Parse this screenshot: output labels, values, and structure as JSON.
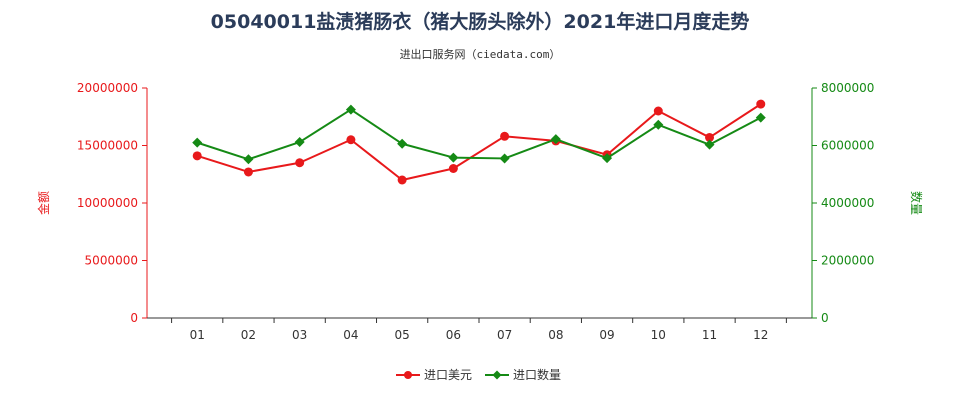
{
  "chart_data": {
    "type": "line",
    "title": "05040011盐渍猪肠衣（猪大肠头除外）2021年进口月度走势",
    "subtitle": "进出口服务网（ciedata.com）",
    "categories": [
      "01",
      "02",
      "03",
      "04",
      "05",
      "06",
      "07",
      "08",
      "09",
      "10",
      "11",
      "12"
    ],
    "y_left": {
      "label": "金额",
      "range": [
        0,
        20000000
      ],
      "ticks": [
        "0",
        "5000000",
        "10000000",
        "15000000",
        "20000000"
      ],
      "color": "#e8191b"
    },
    "y_right": {
      "label": "数量",
      "range": [
        0,
        8000000
      ],
      "ticks": [
        "0",
        "2000000",
        "4000000",
        "6000000",
        "8000000"
      ],
      "color": "#158a15"
    },
    "series": [
      {
        "name": "进口美元",
        "axis": "left",
        "color": "#e8191b",
        "marker": "circle",
        "values": [
          14100000,
          12700000,
          13500000,
          15500000,
          12000000,
          13000000,
          15800000,
          15400000,
          14200000,
          18000000,
          15700000,
          18600000
        ]
      },
      {
        "name": "进口数量",
        "axis": "right",
        "color": "#158a15",
        "marker": "diamond",
        "values": [
          6100000,
          5520000,
          6120000,
          7250000,
          6060000,
          5580000,
          5550000,
          6220000,
          5560000,
          6720000,
          6030000,
          6970000
        ]
      }
    ],
    "grid": false,
    "legend_position": "bottom-center",
    "watermark": "进出口服务网"
  }
}
